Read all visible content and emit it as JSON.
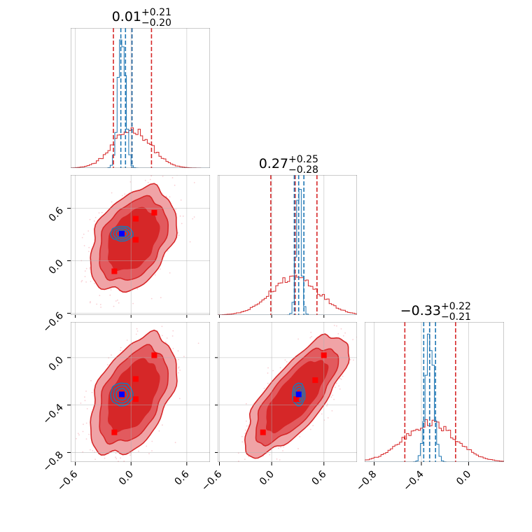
{
  "chart_data": {
    "type": "corner",
    "parameters": 3,
    "colors": {
      "posterior_a": "#1f77b4",
      "posterior_b": "#d62728",
      "truth_marker": "#0000ff",
      "sample_marker": "#ff0000",
      "grid": "#b0b0b0"
    },
    "grid": true,
    "diagonal": [
      {
        "title_main": "0.01",
        "title_upper": "+0.21",
        "title_lower": "−0.20",
        "blue_quantiles": [
          -0.11,
          -0.06,
          0.01
        ],
        "red_quantiles": [
          -0.19,
          0.01,
          0.22
        ],
        "blue_dist": {
          "center": -0.1,
          "sigma": 0.04
        },
        "red_dist": {
          "center": 0.01,
          "sigma": 0.2
        }
      },
      {
        "title_main": "0.27",
        "title_upper": "+0.25",
        "title_lower": "−0.28",
        "blue_quantiles": [
          0.26,
          0.31,
          0.37
        ],
        "red_quantiles": [
          -0.01,
          0.27,
          0.52
        ],
        "blue_dist": {
          "center": 0.31,
          "sigma": 0.03
        },
        "red_dist": {
          "center": 0.27,
          "sigma": 0.27
        }
      },
      {
        "title_main": "−0.33",
        "title_upper": "+0.22",
        "title_lower": "−0.21",
        "blue_quantiles": [
          -0.38,
          -0.33,
          -0.28
        ],
        "red_quantiles": [
          -0.54,
          -0.33,
          -0.11
        ],
        "blue_dist": {
          "center": -0.33,
          "sigma": 0.035
        },
        "red_dist": {
          "center": -0.33,
          "sigma": 0.22
        }
      }
    ],
    "ranges": [
      [
        -0.65,
        0.85
      ],
      [
        -0.62,
        0.98
      ],
      [
        -0.88,
        0.3
      ]
    ],
    "x_ticks": [
      {
        "values": [
          -0.6,
          0.0,
          0.6
        ],
        "labels": [
          "−0.6",
          "0.0",
          "0.6"
        ]
      },
      {
        "values": [
          -0.6,
          0.0,
          0.6
        ],
        "labels": [
          "−0.6",
          "0.0",
          "0.6"
        ]
      },
      {
        "values": [
          -0.8,
          -0.4,
          0.0
        ],
        "labels": [
          "−0.8",
          "−0.4",
          "0.0"
        ]
      }
    ],
    "y_ticks": {
      "row1": {
        "values": [
          -0.6,
          0.0,
          0.6
        ],
        "labels": [
          "−0.6",
          "0.0",
          "0.6"
        ]
      },
      "row2": {
        "values": [
          -0.8,
          -0.4,
          0.0
        ],
        "labels": [
          "−0.8",
          "−0.4",
          "0.0"
        ]
      }
    },
    "offdiagonal": [
      {
        "row": 1,
        "col": 0,
        "red_points": [
          [
            0.05,
            0.48
          ],
          [
            0.25,
            0.55
          ],
          [
            0.05,
            0.24
          ],
          [
            -0.18,
            -0.12
          ]
        ],
        "blue_point": [
          -0.1,
          0.31
        ],
        "red_center": [
          0.02,
          0.24
        ],
        "red_cov": {
          "sx": 0.21,
          "sy": 0.27,
          "rho": 0.35
        },
        "blue_center": [
          -0.1,
          0.31
        ],
        "blue_cov": {
          "sx": 0.05,
          "sy": 0.035,
          "rho": 0.0
        }
      },
      {
        "row": 2,
        "col": 0,
        "red_points": [
          [
            0.25,
            0.02
          ],
          [
            0.05,
            -0.18
          ],
          [
            0.05,
            -0.35
          ],
          [
            -0.18,
            -0.63
          ]
        ],
        "blue_point": [
          -0.1,
          -0.31
        ],
        "red_center": [
          0.02,
          -0.32
        ],
        "red_cov": {
          "sx": 0.21,
          "sy": 0.23,
          "rho": 0.45
        },
        "blue_center": [
          -0.1,
          -0.31
        ],
        "blue_cov": {
          "sx": 0.05,
          "sy": 0.04,
          "rho": 0.0
        }
      },
      {
        "row": 2,
        "col": 1,
        "red_points": [
          [
            0.6,
            0.02
          ],
          [
            0.5,
            -0.19
          ],
          [
            0.28,
            -0.35
          ],
          [
            -0.1,
            -0.63
          ]
        ],
        "blue_point": [
          0.31,
          -0.31
        ],
        "red_center": [
          0.28,
          -0.32
        ],
        "red_cov": {
          "sx": 0.27,
          "sy": 0.23,
          "rho": 0.75
        },
        "blue_center": [
          0.31,
          -0.31
        ],
        "blue_cov": {
          "sx": 0.03,
          "sy": 0.04,
          "rho": 0.0
        }
      }
    ]
  }
}
